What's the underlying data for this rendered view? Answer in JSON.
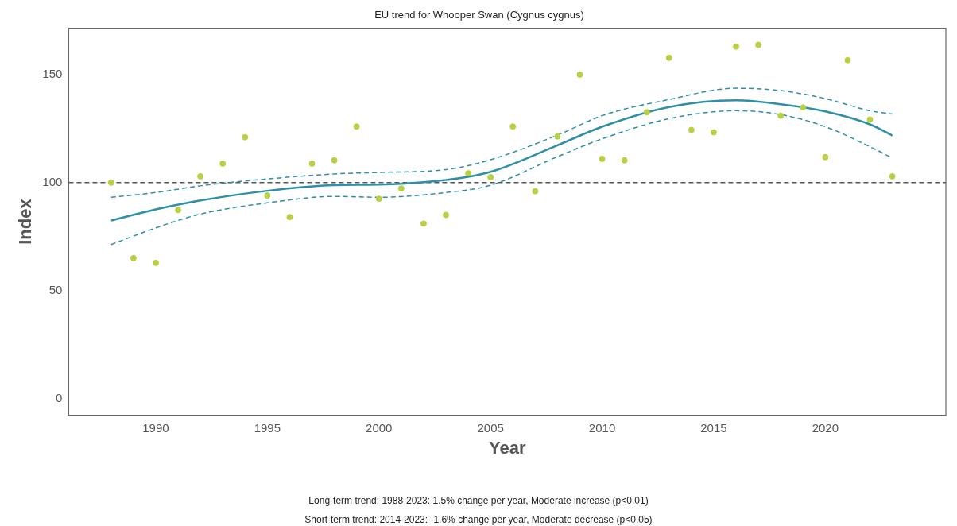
{
  "chart_data": {
    "type": "scatter",
    "title": "EU trend for Whooper Swan (Cygnus cygnus)",
    "xlabel": "Year",
    "ylabel": "Index",
    "xlim": [
      1986.1,
      2025.4
    ],
    "xticks": [
      1990,
      1995,
      2000,
      2005,
      2010,
      2015,
      2020
    ],
    "ylim": [
      -7.8,
      171.5
    ],
    "yticks": [
      0,
      50,
      100,
      150
    ],
    "grid": false,
    "legend": false,
    "series": [
      {
        "color": "#b8d143",
        "marker": "circle",
        "x": [
          1988,
          1989,
          1990,
          1991,
          1992,
          1993,
          1994,
          1995,
          1996,
          1997,
          1998,
          1999,
          2000,
          2001,
          2002,
          2003,
          2004,
          2005,
          2006,
          2007,
          2008,
          2009,
          2010,
          2011,
          2012,
          2013,
          2014,
          2015,
          2016,
          2017,
          2018,
          2019,
          2020,
          2021,
          2022,
          2023
        ],
        "values": [
          100,
          65,
          62.8,
          87.3,
          102.9,
          108.8,
          121,
          94,
          84,
          108.8,
          110.3,
          126,
          92.5,
          97.3,
          81,
          85,
          104.3,
          102.5,
          126,
          96,
          121.4,
          150,
          111,
          110.3,
          132.6,
          157.8,
          124.4,
          123.3,
          163,
          163.8,
          131,
          134.8,
          111.8,
          156.7,
          129.2,
          102.9
        ]
      },
      {
        "type": "line",
        "color": "#2e8fa8",
        "line_style": "solid",
        "x": [
          1988,
          1990,
          1992,
          1995,
          1998,
          2000,
          2003,
          2005,
          2008,
          2010,
          2013,
          2016,
          2018,
          2020,
          2022,
          2023
        ],
        "values": [
          82.4,
          87.6,
          91.7,
          96.2,
          98.8,
          99.1,
          101.2,
          105,
          117.3,
          125.9,
          135,
          138.1,
          136.3,
          133,
          127,
          121.8
        ]
      },
      {
        "type": "line",
        "color": "#2e8fa8",
        "line_style": "dashed",
        "x": [
          1988,
          1990,
          1992,
          1995,
          1998,
          2000,
          2003,
          2005,
          2008,
          2010,
          2013,
          2016,
          2018,
          2020,
          2022,
          2023
        ],
        "values": [
          93.2,
          95.4,
          98.5,
          101.7,
          104,
          104.7,
          106,
          110.6,
          122,
          131,
          138.5,
          143.7,
          142.6,
          138.9,
          133.3,
          131.8
        ]
      },
      {
        "type": "line",
        "color": "#2e8fa8",
        "line_style": "dashed",
        "x": [
          1988,
          1990,
          1992,
          1995,
          1998,
          2000,
          2003,
          2005,
          2008,
          2010,
          2013,
          2016,
          2018,
          2020,
          2022,
          2023
        ],
        "values": [
          71.3,
          79,
          85.4,
          90.6,
          93.6,
          93.2,
          95.4,
          98.8,
          112,
          120.3,
          129.6,
          133.3,
          131.5,
          125.9,
          116.6,
          111.4
        ]
      }
    ],
    "ref_lines": [
      {
        "axis": "y",
        "value": 100,
        "color": "#555555",
        "line_style": "dashed"
      }
    ],
    "annotations": [
      "Long-term trend: 1988-2023: 1.5% change per year, Moderate increase (p<0.01)",
      "Short-term trend: 2014-2023: -1.6% change per year, Moderate decrease (p<0.05)"
    ]
  }
}
